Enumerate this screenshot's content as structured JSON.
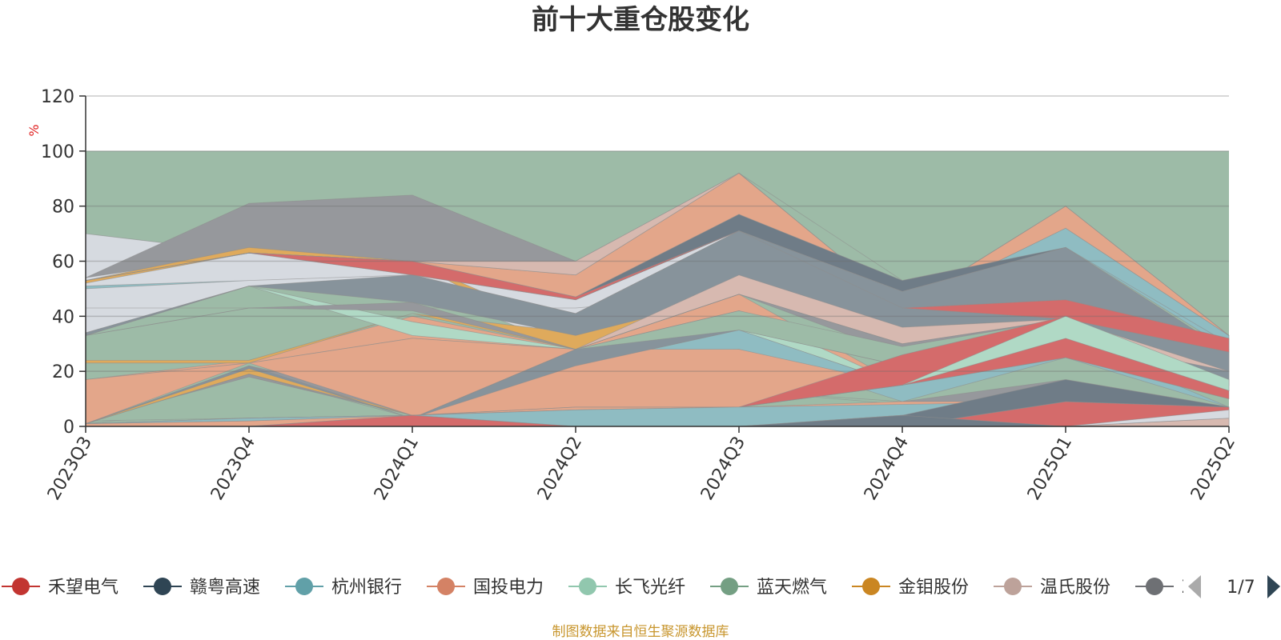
{
  "chart_data": {
    "type": "area",
    "title": "前十大重仓股变化",
    "ylabel": "%",
    "ylim": [
      0,
      120
    ],
    "yticks": [
      0,
      20,
      40,
      60,
      80,
      100,
      120
    ],
    "categories": [
      "2023Q3",
      "2023Q4",
      "2024Q1",
      "2024Q2",
      "2024Q3",
      "2024Q4",
      "2025Q1",
      "2025Q2"
    ],
    "background_band": {
      "from": 0,
      "to": 100,
      "color": "#9dbba7"
    },
    "grid": true,
    "bands": [
      {
        "color": "#d6dae0",
        "lower": [
          33,
          51,
          51,
          28,
          48,
          43,
          39,
          33
        ],
        "upper": [
          70,
          63,
          55,
          46,
          71,
          43,
          40,
          33
        ]
      },
      {
        "color": "#96989c",
        "lower": [
          54,
          63,
          60,
          60,
          92,
          53,
          65,
          33
        ],
        "upper": [
          54,
          81,
          84,
          60,
          92,
          53,
          65,
          33
        ]
      },
      {
        "color": "#e3a68a",
        "lower": [
          17,
          23,
          32,
          28,
          35,
          15,
          32,
          13
        ],
        "upper": [
          17,
          24,
          40,
          28,
          48,
          15,
          40,
          13
        ]
      },
      {
        "color": "#dfaa5c",
        "lower": [
          52,
          63,
          60,
          28,
          48,
          43,
          40,
          33
        ],
        "upper": [
          53,
          65,
          60,
          34,
          48,
          43,
          40,
          33
        ]
      },
      {
        "color": "#dfaa5c",
        "lower": [
          23,
          23,
          41,
          28,
          48,
          43,
          40,
          33
        ],
        "upper": [
          24,
          24,
          41,
          34,
          48,
          43,
          40,
          33
        ]
      },
      {
        "color": "#8fbcc2",
        "lower": [
          50,
          53,
          55,
          41,
          71,
          43,
          65,
          28
        ],
        "upper": [
          51,
          53,
          55,
          41,
          71,
          43,
          72,
          33
        ]
      },
      {
        "color": "#b0d9c5",
        "lower": [
          34,
          51,
          33,
          28,
          35,
          15,
          32,
          15
        ],
        "upper": [
          34,
          51,
          38,
          28,
          42,
          15,
          32,
          15
        ]
      },
      {
        "color": "#b0d9c5",
        "lower": [
          43,
          43,
          43,
          43,
          48,
          43,
          40,
          20
        ],
        "upper": [
          43,
          43,
          43,
          43,
          48,
          43,
          57,
          28
        ]
      },
      {
        "color": "#e3a68a",
        "lower": [
          53,
          63,
          60,
          46,
          77,
          43,
          72,
          33
        ],
        "upper": [
          53,
          63,
          60,
          55,
          92,
          43,
          80,
          33
        ]
      },
      {
        "color": "#d7b9b0",
        "lower": [
          53,
          63,
          60,
          55,
          92,
          43,
          80,
          33
        ],
        "upper": [
          53,
          63,
          60,
          60,
          92,
          43,
          80,
          33
        ]
      },
      {
        "color": "#6f7c87",
        "lower": [
          53,
          63,
          60,
          46,
          71,
          49,
          65,
          30
        ],
        "upper": [
          53,
          63,
          60,
          47,
          77,
          53,
          65,
          30
        ]
      },
      {
        "color": "#87939b",
        "lower": [
          33,
          51,
          45,
          33,
          48,
          36,
          39,
          20
        ],
        "upper": [
          34,
          51,
          55,
          41,
          71,
          49,
          65,
          27
        ]
      },
      {
        "color": "#d46b6b",
        "lower": [
          53,
          63,
          55,
          46,
          71,
          43,
          39,
          27
        ],
        "upper": [
          53,
          63,
          60,
          47,
          71,
          43,
          46,
          32
        ]
      },
      {
        "color": "#d7b9b0",
        "lower": [
          33,
          43,
          43,
          28,
          48,
          30,
          39,
          17
        ],
        "upper": [
          33,
          43,
          43,
          28,
          55,
          36,
          39,
          20
        ]
      },
      {
        "color": "#96989c",
        "lower": [
          33,
          43,
          42,
          28,
          48,
          26,
          39,
          17
        ],
        "upper": [
          33,
          43,
          45,
          28,
          48,
          30,
          39,
          17
        ]
      },
      {
        "color": "#8fbcc2",
        "lower": [
          1,
          7,
          6,
          22,
          28,
          9,
          25,
          7
        ],
        "upper": [
          1,
          7,
          9,
          22,
          35,
          15,
          32,
          7
        ]
      },
      {
        "color": "#96989c",
        "lower": [
          1,
          18,
          4,
          12,
          13,
          9,
          9,
          7
        ],
        "upper": [
          1,
          22,
          9,
          15,
          13,
          9,
          17,
          7
        ]
      },
      {
        "color": "#9dbba7",
        "lower": [
          2,
          3,
          4,
          6,
          7,
          8,
          9,
          7
        ],
        "upper": [
          2,
          18,
          4,
          12,
          13,
          8,
          9,
          7
        ]
      },
      {
        "color": "#dfaa5c",
        "lower": [
          1,
          19,
          4,
          6,
          7,
          8,
          9,
          7
        ],
        "upper": [
          1,
          21,
          4,
          6,
          7,
          8,
          9,
          7
        ]
      },
      {
        "color": "#e3a68a",
        "lower": [
          1,
          23,
          4,
          6,
          7,
          15,
          25,
          13
        ],
        "upper": [
          17,
          23,
          32,
          28,
          28,
          15,
          32,
          15
        ]
      },
      {
        "color": "#87939b",
        "lower": [
          1,
          21,
          3,
          22,
          35,
          22,
          32,
          15
        ],
        "upper": [
          1,
          22,
          3,
          28,
          42,
          26,
          32,
          20
        ]
      },
      {
        "color": "#9dbba7",
        "lower": [
          1,
          19,
          3,
          28,
          35,
          22,
          32,
          15
        ],
        "upper": [
          1,
          19,
          3,
          28,
          42,
          29,
          39,
          17
        ]
      },
      {
        "color": "#d46b6b",
        "lower": [
          1,
          3,
          4,
          7,
          7,
          15,
          25,
          10
        ],
        "upper": [
          1,
          3,
          4,
          7,
          7,
          26,
          40,
          13
        ]
      },
      {
        "color": "#b0d9c5",
        "lower": [
          1,
          3,
          4,
          7,
          7,
          15,
          32,
          13
        ],
        "upper": [
          1,
          3,
          4,
          7,
          7,
          15,
          40,
          17
        ]
      },
      {
        "color": "#e3a68a",
        "lower": [
          0,
          0,
          4,
          0,
          6,
          7,
          0,
          7
        ],
        "upper": [
          1,
          2,
          4,
          6,
          7,
          9,
          9,
          7
        ]
      },
      {
        "color": "#8fbcc2",
        "lower": [
          1,
          2,
          4,
          0,
          0,
          4,
          0,
          0
        ],
        "upper": [
          1,
          3,
          4,
          6,
          7,
          8,
          9,
          7
        ]
      },
      {
        "color": "#d46b6b",
        "lower": [
          0,
          0,
          0,
          0,
          0,
          0,
          0,
          0
        ],
        "upper": [
          0,
          0,
          4,
          0,
          0,
          0,
          9,
          7
        ]
      },
      {
        "color": "#6f7c87",
        "lower": [
          0,
          0,
          0,
          0,
          0,
          0,
          9,
          7
        ],
        "upper": [
          0,
          0,
          0,
          0,
          0,
          4,
          17,
          7
        ]
      },
      {
        "color": "#6f7c87",
        "lower": [
          0,
          0,
          0,
          0,
          0,
          0,
          0,
          0
        ],
        "upper": [
          0,
          0,
          0,
          0,
          0,
          4,
          0,
          0
        ]
      },
      {
        "color": "#d7b9b0",
        "lower": [
          0,
          0,
          0,
          0,
          0,
          0,
          0,
          0
        ],
        "upper": [
          0,
          0,
          0,
          0,
          0,
          0,
          0,
          3
        ]
      },
      {
        "color": "#d6dae0",
        "lower": [
          0,
          0,
          0,
          0,
          0,
          0,
          0,
          3
        ],
        "upper": [
          0,
          0,
          0,
          0,
          0,
          0,
          0,
          6
        ]
      }
    ],
    "legend": {
      "position": "bottom",
      "items": [
        {
          "name": "禾望电气",
          "color": "#c23531"
        },
        {
          "name": "赣粤高速",
          "color": "#2f4554"
        },
        {
          "name": "杭州银行",
          "color": "#61a0a8"
        },
        {
          "name": "国投电力",
          "color": "#d48265"
        },
        {
          "name": "长飞光纤",
          "color": "#91c7ae"
        },
        {
          "name": "蓝天燃气",
          "color": "#749f83"
        },
        {
          "name": "金钼股份",
          "color": "#ca8622"
        },
        {
          "name": "温氏股份",
          "color": "#bda29a"
        },
        {
          "name": "Z",
          "color": "#6e7074"
        }
      ],
      "page": "1/7"
    },
    "source": "制图数据来自恒生聚源数据库"
  }
}
